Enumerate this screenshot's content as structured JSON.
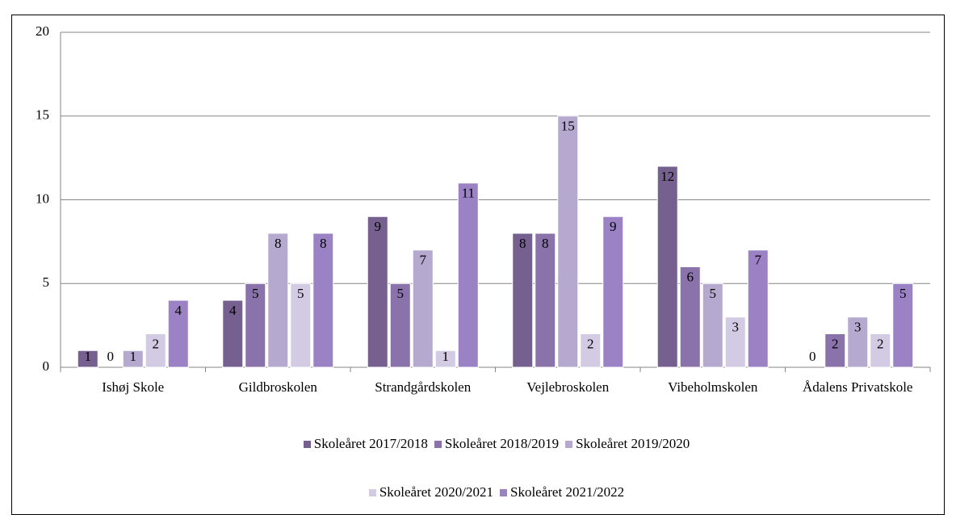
{
  "chart_data": {
    "type": "bar",
    "categories": [
      "Ishøj Skole",
      "Gildbroskolen",
      "Strandgårdskolen",
      "Vejlebroskolen",
      "Vibeholmskolen",
      "Ådalens Privatskole"
    ],
    "series": [
      {
        "name": "Skoleåret 2017/2018",
        "color": "#75608f",
        "values": [
          1,
          4,
          9,
          8,
          12,
          0
        ]
      },
      {
        "name": "Skoleåret 2018/2019",
        "color": "#8a72aa",
        "values": [
          0,
          5,
          5,
          8,
          6,
          2
        ]
      },
      {
        "name": "Skoleåret 2019/2020",
        "color": "#b6a9cf",
        "values": [
          1,
          8,
          7,
          15,
          5,
          3
        ]
      },
      {
        "name": "Skoleåret 2020/2021",
        "color": "#d3cae3",
        "values": [
          2,
          5,
          1,
          2,
          3,
          2
        ]
      },
      {
        "name": "Skoleåret 2021/2022",
        "color": "#9b82c4",
        "values": [
          4,
          8,
          11,
          9,
          7,
          5
        ]
      }
    ],
    "ylim": [
      0,
      20
    ],
    "yticks": [
      0,
      5,
      10,
      15,
      20
    ],
    "grid": true,
    "legend": "bottom"
  }
}
